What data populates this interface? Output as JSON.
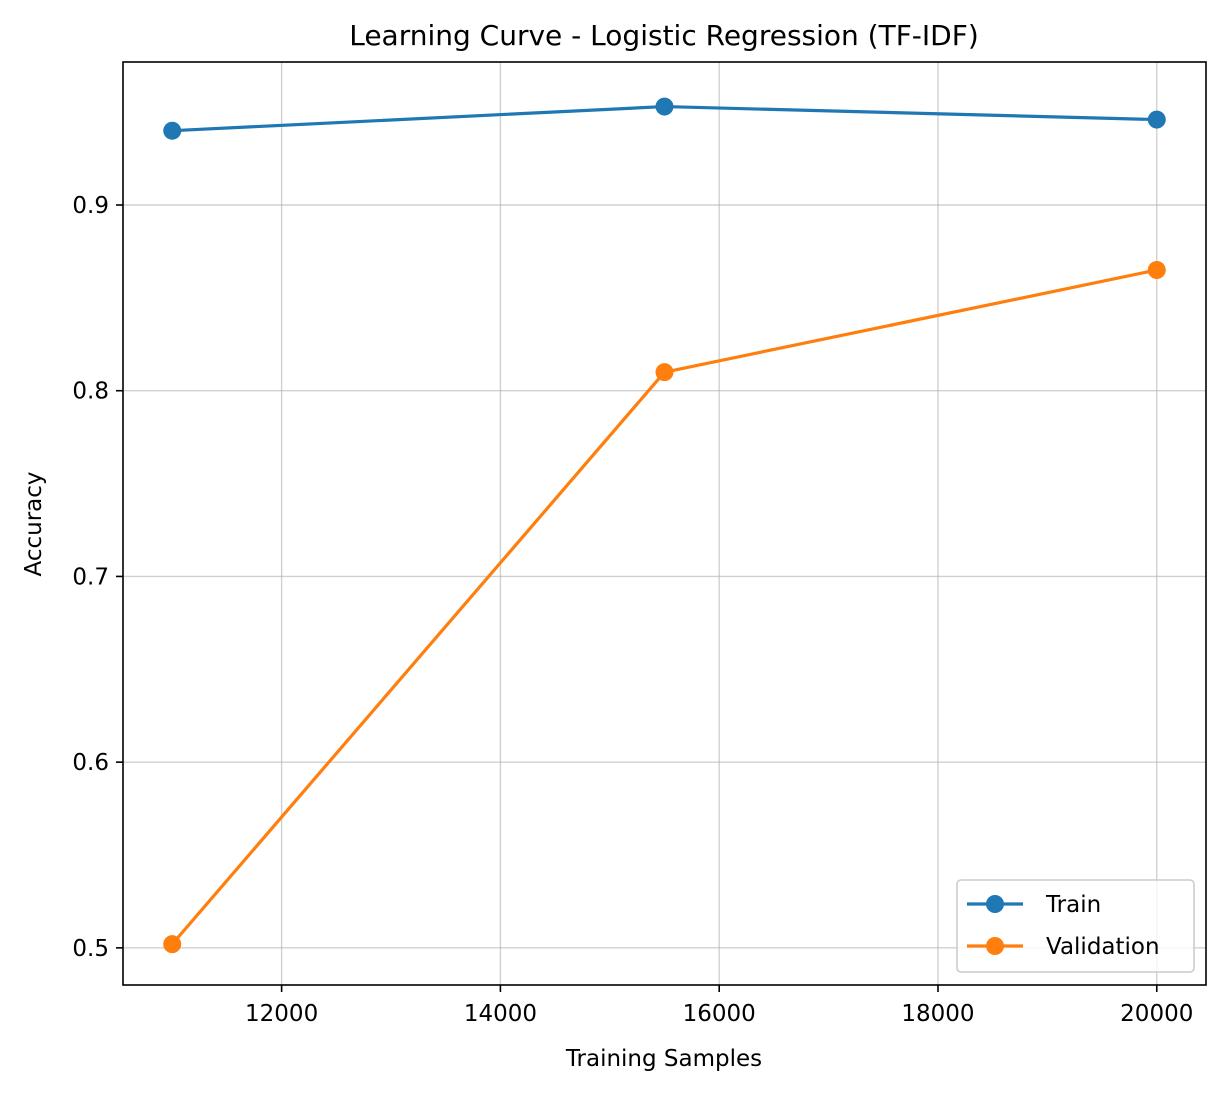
{
  "chart_data": {
    "type": "line",
    "title": "Learning Curve - Logistic Regression (TF-IDF)",
    "xlabel": "Training Samples",
    "ylabel": "Accuracy",
    "x": [
      11000,
      15500,
      20000
    ],
    "xlim": [
      10550,
      20450
    ],
    "ylim": [
      0.48,
      0.977
    ],
    "x_ticks": [
      12000,
      14000,
      16000,
      18000,
      20000
    ],
    "x_tick_labels": [
      "12000",
      "14000",
      "16000",
      "18000",
      "20000"
    ],
    "y_ticks": [
      0.5,
      0.6,
      0.7,
      0.8,
      0.9
    ],
    "y_tick_labels": [
      "0.5",
      "0.6",
      "0.7",
      "0.8",
      "0.9"
    ],
    "grid": true,
    "legend_position": "lower right",
    "series": [
      {
        "name": "Train",
        "color": "#1f77b4",
        "marker": "circle",
        "values": [
          0.94,
          0.953,
          0.946
        ]
      },
      {
        "name": "Validation",
        "color": "#ff7f0e",
        "marker": "circle",
        "values": [
          0.502,
          0.81,
          0.865
        ]
      }
    ]
  }
}
